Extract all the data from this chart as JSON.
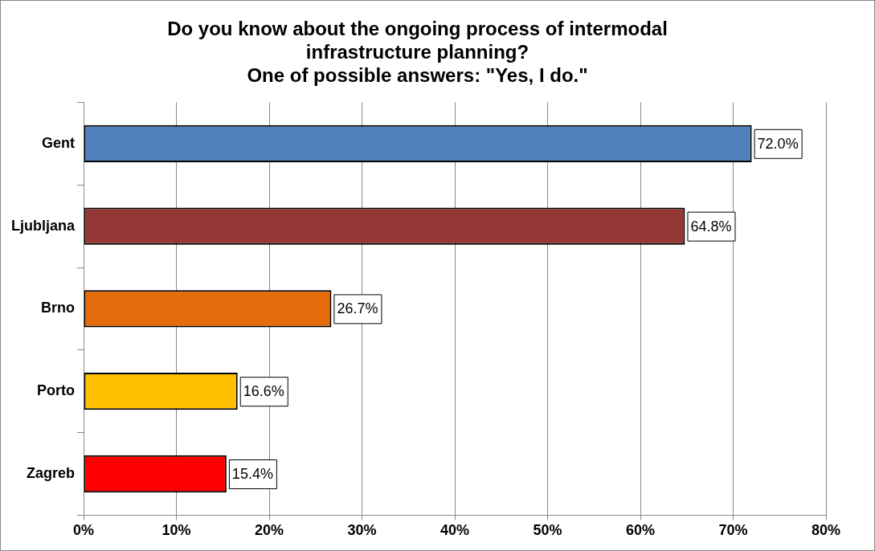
{
  "chart_data": {
    "type": "bar",
    "orientation": "horizontal",
    "title": "Do you know about the ongoing process of intermodal\ninfrastructure planning?\nOne of possible answers: \"Yes, I do.\"",
    "categories": [
      "Gent",
      "Ljubljana",
      "Brno",
      "Porto",
      "Zagreb"
    ],
    "values": [
      72.0,
      64.8,
      26.7,
      16.6,
      15.4
    ],
    "colors": [
      "#4f81bd",
      "#953735",
      "#e46c0a",
      "#ffc000",
      "#ff0000"
    ],
    "value_labels": [
      "72.0%",
      "64.8%",
      "26.7%",
      "16.6%",
      "15.4%"
    ],
    "xlim": [
      0,
      80
    ],
    "xticks": [
      {
        "value": 0,
        "label": "0%"
      },
      {
        "value": 10,
        "label": "10%"
      },
      {
        "value": 20,
        "label": "20%"
      },
      {
        "value": 30,
        "label": "30%"
      },
      {
        "value": 40,
        "label": "40%"
      },
      {
        "value": 50,
        "label": "50%"
      },
      {
        "value": 60,
        "label": "60%"
      },
      {
        "value": 70,
        "label": "70%"
      },
      {
        "value": 80,
        "label": "80%"
      }
    ],
    "grid": "x",
    "legend": false
  }
}
